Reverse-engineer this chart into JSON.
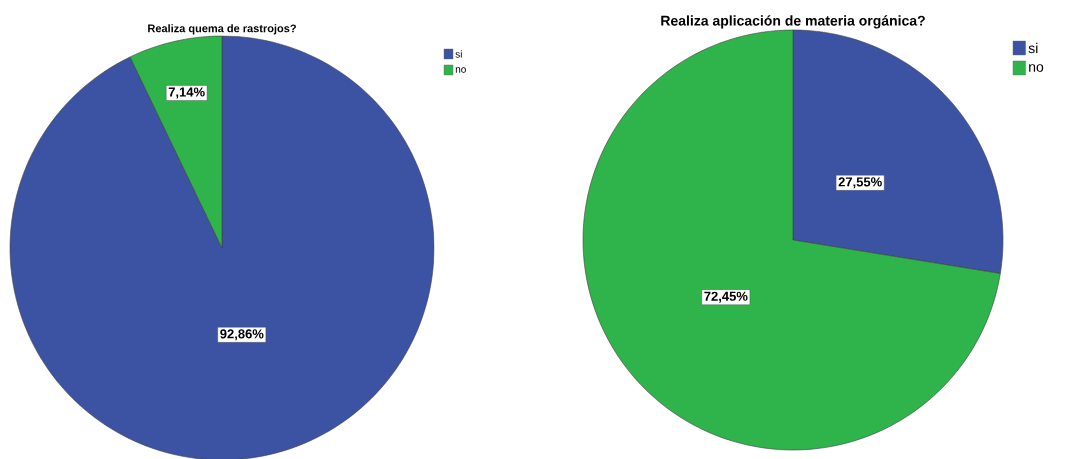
{
  "chart_data": [
    {
      "type": "pie",
      "title": "Realiza quema de rastrojos?",
      "categories": [
        "si",
        "no"
      ],
      "values": [
        92.86,
        7.14
      ],
      "colors": [
        "#3c53a4",
        "#2fb34b"
      ],
      "value_labels": [
        "92,86%",
        "7,14%"
      ],
      "legend": "top right"
    },
    {
      "type": "pie",
      "title": "Realiza aplicación de materia orgánica?",
      "categories": [
        "si",
        "no"
      ],
      "values": [
        27.55,
        72.45
      ],
      "colors": [
        "#3c53a4",
        "#2fb34b"
      ],
      "value_labels": [
        "27,55%",
        "72,45%"
      ],
      "legend": "top right"
    }
  ]
}
